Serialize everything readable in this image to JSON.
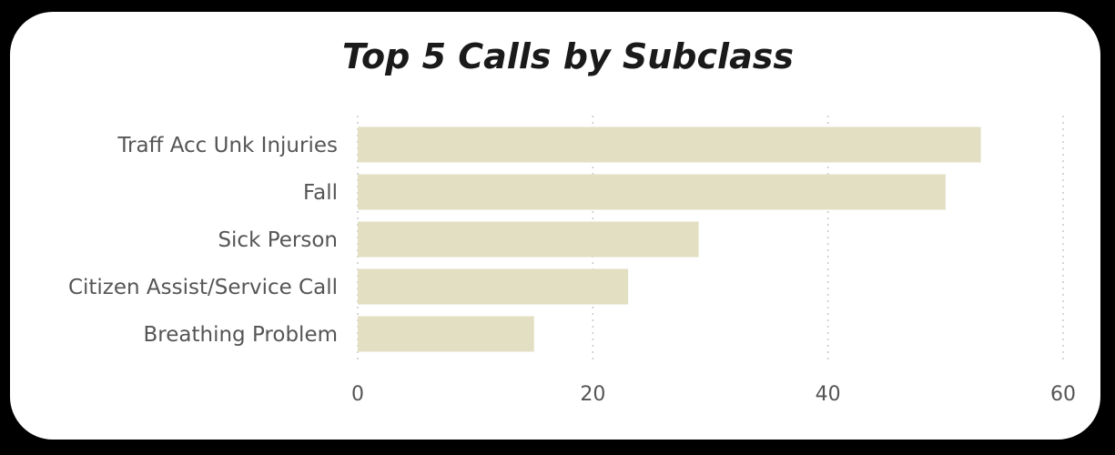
{
  "chart_data": {
    "type": "bar",
    "orientation": "horizontal",
    "title": "Top 5 Calls by Subclass",
    "categories": [
      "Traff Acc Unk Injuries",
      "Fall",
      "Sick Person",
      "Citizen Assist/Service Call",
      "Breathing Problem"
    ],
    "values": [
      53,
      50,
      29,
      23,
      15
    ],
    "xlim": [
      0,
      60
    ],
    "xticks": [
      "0",
      "20",
      "40",
      "60"
    ],
    "xlabel": "",
    "ylabel": "",
    "grid": true,
    "legend": "none",
    "bar_color": "#e2dfc3"
  }
}
